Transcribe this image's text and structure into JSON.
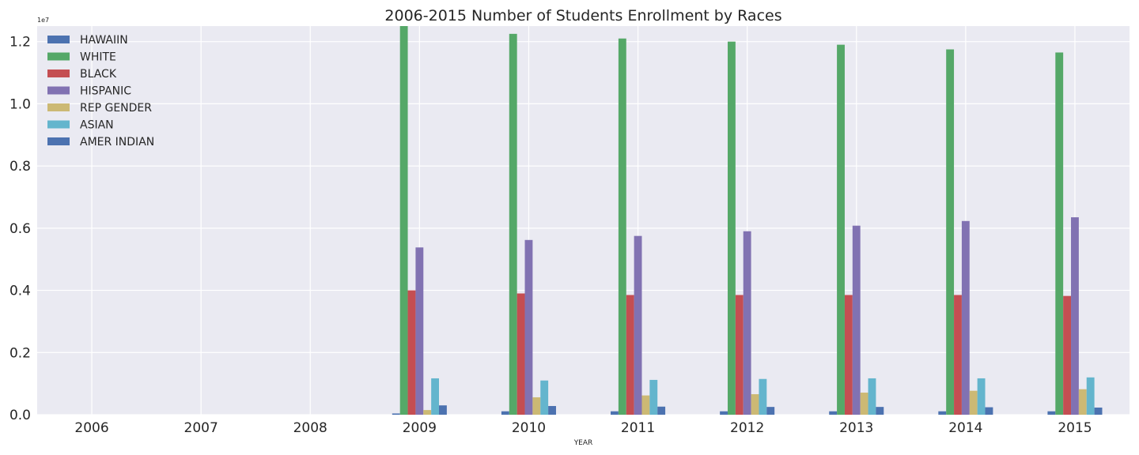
{
  "chart_data": {
    "type": "bar",
    "title": "2006-2015 Number of Students Enrollment by Races",
    "xlabel": "YEAR",
    "ylabel": "",
    "y_scale_label": "1e7",
    "categories": [
      "2006",
      "2007",
      "2008",
      "2009",
      "2010",
      "2011",
      "2012",
      "2013",
      "2014",
      "2015"
    ],
    "ylim": [
      0,
      12500000
    ],
    "yticks": [
      0,
      2000000,
      4000000,
      6000000,
      8000000,
      10000000,
      12000000
    ],
    "ytick_labels": [
      "0.0",
      "0.2",
      "0.4",
      "0.6",
      "0.8",
      "1.0",
      "1.2"
    ],
    "grid": true,
    "legend_position": "top-left",
    "series": [
      {
        "name": "HAWAIIN",
        "color": "#4c72b0",
        "values": [
          null,
          null,
          null,
          40000,
          110000,
          110000,
          110000,
          110000,
          110000,
          110000
        ]
      },
      {
        "name": "WHITE",
        "color": "#55a868",
        "values": [
          null,
          null,
          null,
          12550000,
          12250000,
          12100000,
          12000000,
          11900000,
          11750000,
          11650000
        ]
      },
      {
        "name": "BLACK",
        "color": "#c44e52",
        "values": [
          null,
          null,
          null,
          4000000,
          3900000,
          3850000,
          3850000,
          3850000,
          3850000,
          3820000
        ]
      },
      {
        "name": "HISPANIC",
        "color": "#8172b2",
        "values": [
          null,
          null,
          null,
          5380000,
          5620000,
          5750000,
          5900000,
          6080000,
          6230000,
          6350000
        ]
      },
      {
        "name": "REP GENDER",
        "color": "#ccb974",
        "values": [
          null,
          null,
          null,
          150000,
          560000,
          620000,
          660000,
          710000,
          770000,
          820000
        ]
      },
      {
        "name": "ASIAN",
        "color": "#64b5cd",
        "values": [
          null,
          null,
          null,
          1170000,
          1100000,
          1120000,
          1150000,
          1170000,
          1170000,
          1200000
        ]
      },
      {
        "name": "AMER INDIAN",
        "color": "#4c72b0",
        "values": [
          null,
          null,
          null,
          300000,
          280000,
          260000,
          250000,
          250000,
          240000,
          230000
        ]
      }
    ]
  }
}
